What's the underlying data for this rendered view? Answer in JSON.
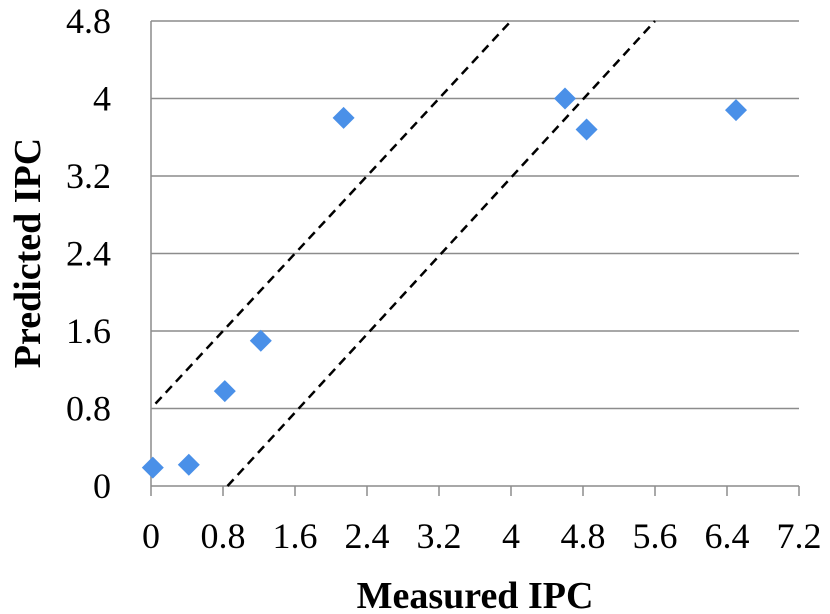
{
  "chart_data": {
    "type": "scatter",
    "title": "",
    "xlabel": "Measured IPC",
    "ylabel": "Predicted IPC",
    "xlim": [
      0,
      7.2
    ],
    "ylim": [
      0,
      4.8
    ],
    "x_ticks": [
      "0",
      "0.8",
      "1.6",
      "2.4",
      "3.2",
      "4",
      "4.8",
      "5.6",
      "6.4",
      "7.2"
    ],
    "y_ticks": [
      "0",
      "0.8",
      "1.6",
      "2.4",
      "3.2",
      "4",
      "4.8"
    ],
    "grid": "horizontal",
    "marker": "diamond",
    "colors": {
      "points": "#4a90e8",
      "grid": "#8c8c8c",
      "guide": "#000000"
    },
    "series": [
      {
        "name": "IPC",
        "points": [
          {
            "x": 0.02,
            "y": 0.19
          },
          {
            "x": 0.42,
            "y": 0.22
          },
          {
            "x": 0.82,
            "y": 0.98
          },
          {
            "x": 1.22,
            "y": 1.5
          },
          {
            "x": 2.14,
            "y": 3.8
          },
          {
            "x": 4.6,
            "y": 4.0
          },
          {
            "x": 4.84,
            "y": 3.68
          },
          {
            "x": 6.5,
            "y": 3.88
          }
        ]
      }
    ],
    "guide_lines": [
      {
        "name": "upper-bound",
        "style": "dashed",
        "from": {
          "x": 0.05,
          "y": 0.85
        },
        "to": {
          "x": 4.0,
          "y": 4.8
        }
      },
      {
        "name": "lower-bound",
        "style": "dashed",
        "from": {
          "x": 0.85,
          "y": 0.0
        },
        "to": {
          "x": 5.6,
          "y": 4.8
        }
      }
    ]
  }
}
